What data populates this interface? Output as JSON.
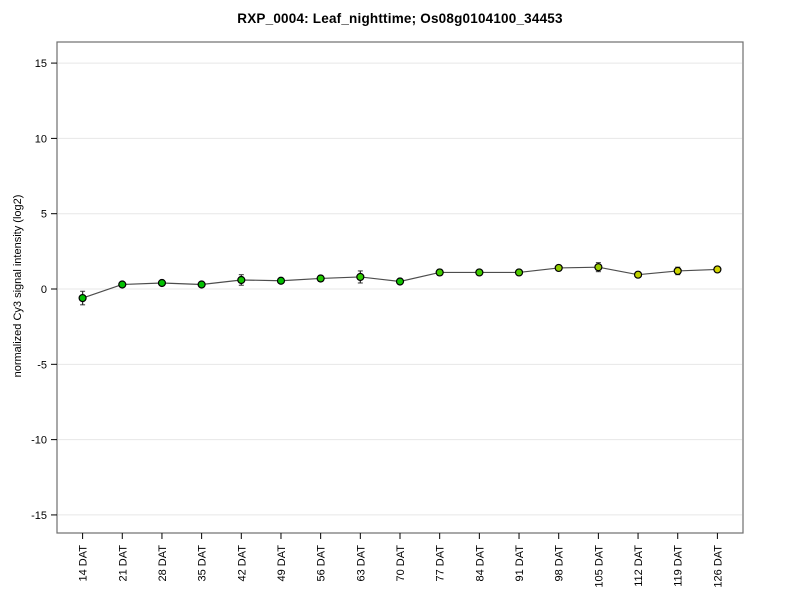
{
  "chart_data": {
    "type": "line",
    "title": "RXP_0004: Leaf_nighttime; Os08g0104100_34453",
    "ylabel": "normalized Cy3 signal intensity (log2)",
    "xlabel": "",
    "categories": [
      "14 DAT",
      "21 DAT",
      "28 DAT",
      "35 DAT",
      "42 DAT",
      "49 DAT",
      "56 DAT",
      "63 DAT",
      "70 DAT",
      "77 DAT",
      "84 DAT",
      "91 DAT",
      "98 DAT",
      "105 DAT",
      "112 DAT",
      "119 DAT",
      "126 DAT"
    ],
    "values": [
      -0.6,
      0.3,
      0.4,
      0.3,
      0.6,
      0.55,
      0.7,
      0.8,
      0.5,
      1.1,
      1.1,
      1.1,
      1.4,
      1.45,
      0.95,
      1.2,
      1.3
    ],
    "errors": [
      0.45,
      0.1,
      0.12,
      0.1,
      0.35,
      0.12,
      0.2,
      0.4,
      0.1,
      0.2,
      0.12,
      0.12,
      0.15,
      0.3,
      0.1,
      0.25,
      0.12
    ],
    "point_colors": [
      "#00BE00",
      "#00C000",
      "#00C000",
      "#00C000",
      "#10C400",
      "#00C000",
      "#20C800",
      "#30CC00",
      "#10C400",
      "#40CC00",
      "#40CC00",
      "#50CC00",
      "#90CC00",
      "#9ACC00",
      "#C0D200",
      "#CCD400",
      "#D2D400"
    ],
    "yticks": [
      -15,
      -10,
      -5,
      0,
      5,
      10,
      15
    ],
    "ylim": [
      -16.2,
      16.4
    ],
    "grid": true,
    "legend": "none",
    "line_color": "#4d4d4d",
    "marker_outline": "#000000",
    "error_bar_color": "#333333",
    "grid_color": "#e7e7e7",
    "frame_color": "#6e6e6e",
    "tick_color": "#000000",
    "label_color": "#000000"
  }
}
